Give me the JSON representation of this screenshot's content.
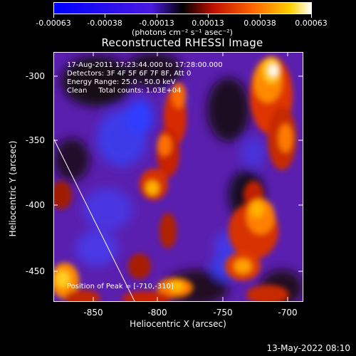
{
  "colorbar": {
    "tick_labels": [
      "-0.00063",
      "-0.00038",
      "-0.00013",
      "0.00013",
      "0.00038",
      "0.00063"
    ],
    "units": "(photons cm⁻² s⁻¹ asec⁻²)"
  },
  "title": "Reconstructed RHESSI Image",
  "info": {
    "time_range": "17-Aug-2011 17:23:44.000 to 17:28:00.000",
    "detectors": "Detectors: 3F 4F 5F 6F 7F 8F, Att 0",
    "energy": "Energy Range: 25.0 - 50.0 keV",
    "clean": "Clean     Total counts: 1.03E+04",
    "peak": "Position of Peak = [-710,-310]"
  },
  "axes": {
    "xlabel": "Heliocentric X (arcsec)",
    "ylabel": "Heliocentric Y (arcsec)",
    "xticks": [
      "-850",
      "-800",
      "-750",
      "-700"
    ],
    "yticks": [
      "-300",
      "-350",
      "-400",
      "-450"
    ]
  },
  "timestamp": "13-May-2022 08:10"
}
